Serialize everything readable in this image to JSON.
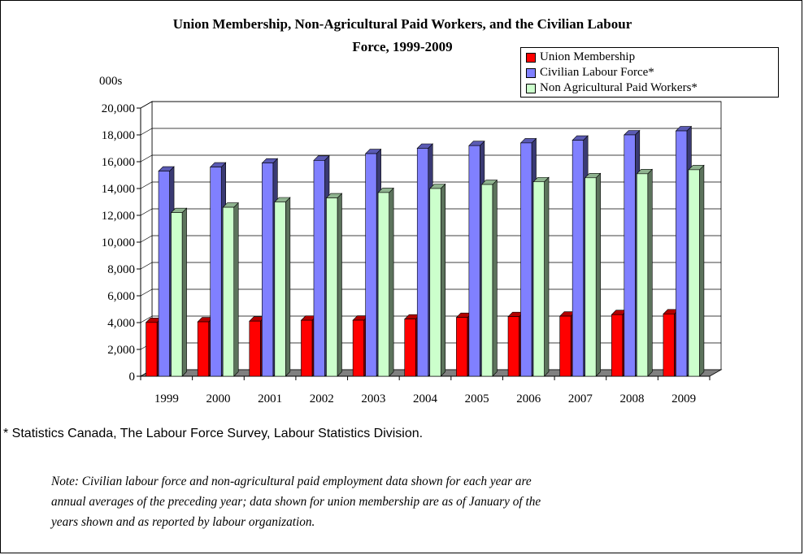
{
  "chart_data": {
    "type": "bar",
    "title_lines": [
      "Union Membership, Non-Agricultural Paid Workers, and the Civilian Labour",
      "Force, 1999-2009"
    ],
    "units_label": "000s",
    "categories": [
      "1999",
      "2000",
      "2001",
      "2002",
      "2003",
      "2004",
      "2005",
      "2006",
      "2007",
      "2008",
      "2009"
    ],
    "series": [
      {
        "name": "Union Membership",
        "color": "#ff0000",
        "values": [
          4010,
          4058,
          4111,
          4174,
          4178,
          4261,
          4381,
          4441,
          4480,
          4592,
          4645
        ]
      },
      {
        "name": "Civilian Labour Force*",
        "color": "#8080ff",
        "values": [
          15300,
          15600,
          15900,
          16100,
          16600,
          17000,
          17200,
          17400,
          17600,
          18000,
          18300
        ]
      },
      {
        "name": "Non Agricultural Paid Workers*",
        "color": "#ccffcc",
        "values": [
          12200,
          12600,
          13000,
          13300,
          13700,
          14000,
          14300,
          14500,
          14800,
          15100,
          15400
        ]
      }
    ],
    "ylim": [
      0,
      20000
    ],
    "ytick_values": [
      0,
      2000,
      4000,
      6000,
      8000,
      10000,
      12000,
      14000,
      16000,
      18000,
      20000
    ],
    "ytick_labels": [
      "0",
      "2,000",
      "4,000",
      "6,000",
      "8,000",
      "10,000",
      "12,000",
      "14,000",
      "16,000",
      "18,000",
      "20,000"
    ],
    "grid": true,
    "legend_position": "top-right"
  },
  "footnote": "* Statistics Canada, The Labour Force Survey, Labour Statistics Division.",
  "note_lines": [
    "Note: Civilian labour force and non-agricultural paid employment data shown for each year are",
    "annual averages of the preceding year; data shown for union membership are as of January of the",
    "years shown and as reported by labour organization."
  ]
}
